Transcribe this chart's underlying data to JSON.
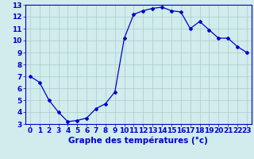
{
  "hours": [
    0,
    1,
    2,
    3,
    4,
    5,
    6,
    7,
    8,
    9,
    10,
    11,
    12,
    13,
    14,
    15,
    16,
    17,
    18,
    19,
    20,
    21,
    22,
    23
  ],
  "temps": [
    7.0,
    6.5,
    5.0,
    4.0,
    3.2,
    3.3,
    3.5,
    4.3,
    4.7,
    5.7,
    10.2,
    12.2,
    12.5,
    12.7,
    12.8,
    12.5,
    12.4,
    11.0,
    11.6,
    10.9,
    10.2,
    10.2,
    9.5,
    9.0
  ],
  "line_color": "#0000cc",
  "marker": "D",
  "marker_size": 2.0,
  "bg_color": "#d0ecec",
  "grid_color": "#aacccc",
  "xlabel": "Graphe des températures (°c)",
  "xlabel_fontsize": 7.5,
  "tick_fontsize": 6.5,
  "ylim": [
    3,
    13
  ],
  "xlim": [
    -0.5,
    23.5
  ],
  "yticks": [
    3,
    4,
    5,
    6,
    7,
    8,
    9,
    10,
    11,
    12,
    13
  ],
  "xticks": [
    0,
    1,
    2,
    3,
    4,
    5,
    6,
    7,
    8,
    9,
    10,
    11,
    12,
    13,
    14,
    15,
    16,
    17,
    18,
    19,
    20,
    21,
    22,
    23
  ]
}
